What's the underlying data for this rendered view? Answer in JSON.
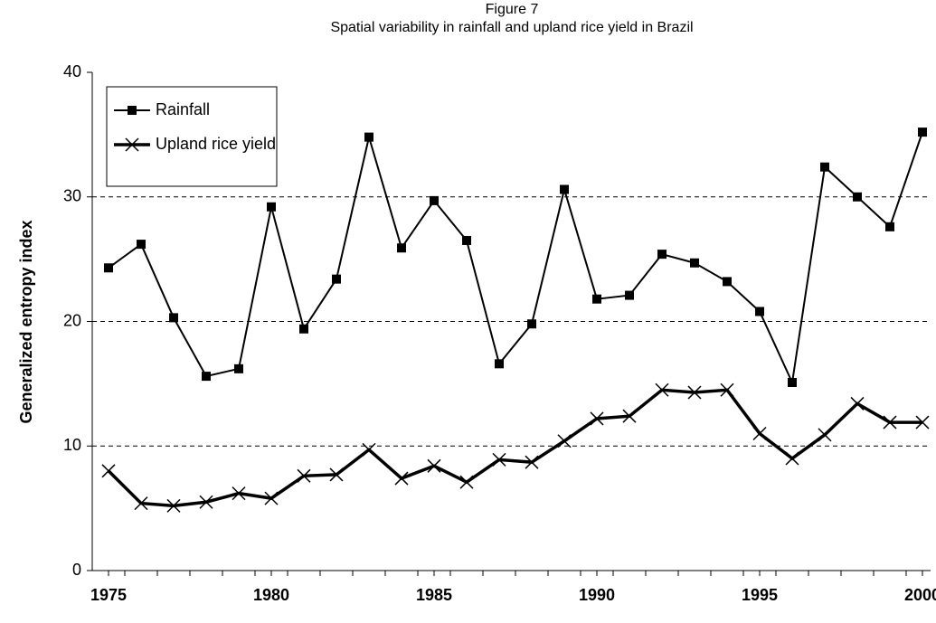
{
  "chart_data": {
    "type": "line",
    "title": "Figure 7",
    "subtitle": "Spatial variability in rainfall and upland rice yield in Brazil",
    "y_label": "Generalized entropy index",
    "x": [
      1975,
      1976,
      1977,
      1978,
      1979,
      1980,
      1981,
      1982,
      1983,
      1984,
      1985,
      1986,
      1987,
      1988,
      1989,
      1990,
      1991,
      1992,
      1993,
      1994,
      1995,
      1996,
      1997,
      1998,
      1999,
      2000
    ],
    "series": [
      {
        "name": "Rainfall",
        "color": "#000000",
        "marker": "square",
        "values": [
          24.3,
          26.2,
          20.3,
          15.6,
          16.2,
          29.2,
          19.4,
          23.4,
          34.8,
          25.9,
          29.7,
          26.5,
          16.6,
          19.8,
          30.6,
          21.8,
          22.1,
          25.4,
          24.7,
          23.2,
          20.8,
          15.1,
          32.4,
          30.0,
          27.6,
          35.2
        ]
      },
      {
        "name": "Upland rice yield",
        "color": "#000000",
        "marker": "x",
        "values": [
          8.0,
          5.4,
          5.2,
          5.5,
          6.2,
          5.8,
          7.6,
          7.7,
          9.7,
          7.4,
          8.4,
          7.1,
          8.9,
          8.7,
          10.4,
          12.2,
          12.4,
          14.5,
          14.3,
          14.5,
          11.0,
          9.0,
          10.9,
          13.4,
          11.9,
          11.9
        ]
      }
    ],
    "xlim": [
      1974.5,
      2000.25
    ],
    "xticks": [
      1975,
      1980,
      1985,
      1990,
      1995,
      2000
    ],
    "ylim": [
      0,
      40
    ],
    "yticks": [
      0,
      10,
      20,
      30,
      40
    ],
    "grid": true,
    "legend": "top-left"
  }
}
